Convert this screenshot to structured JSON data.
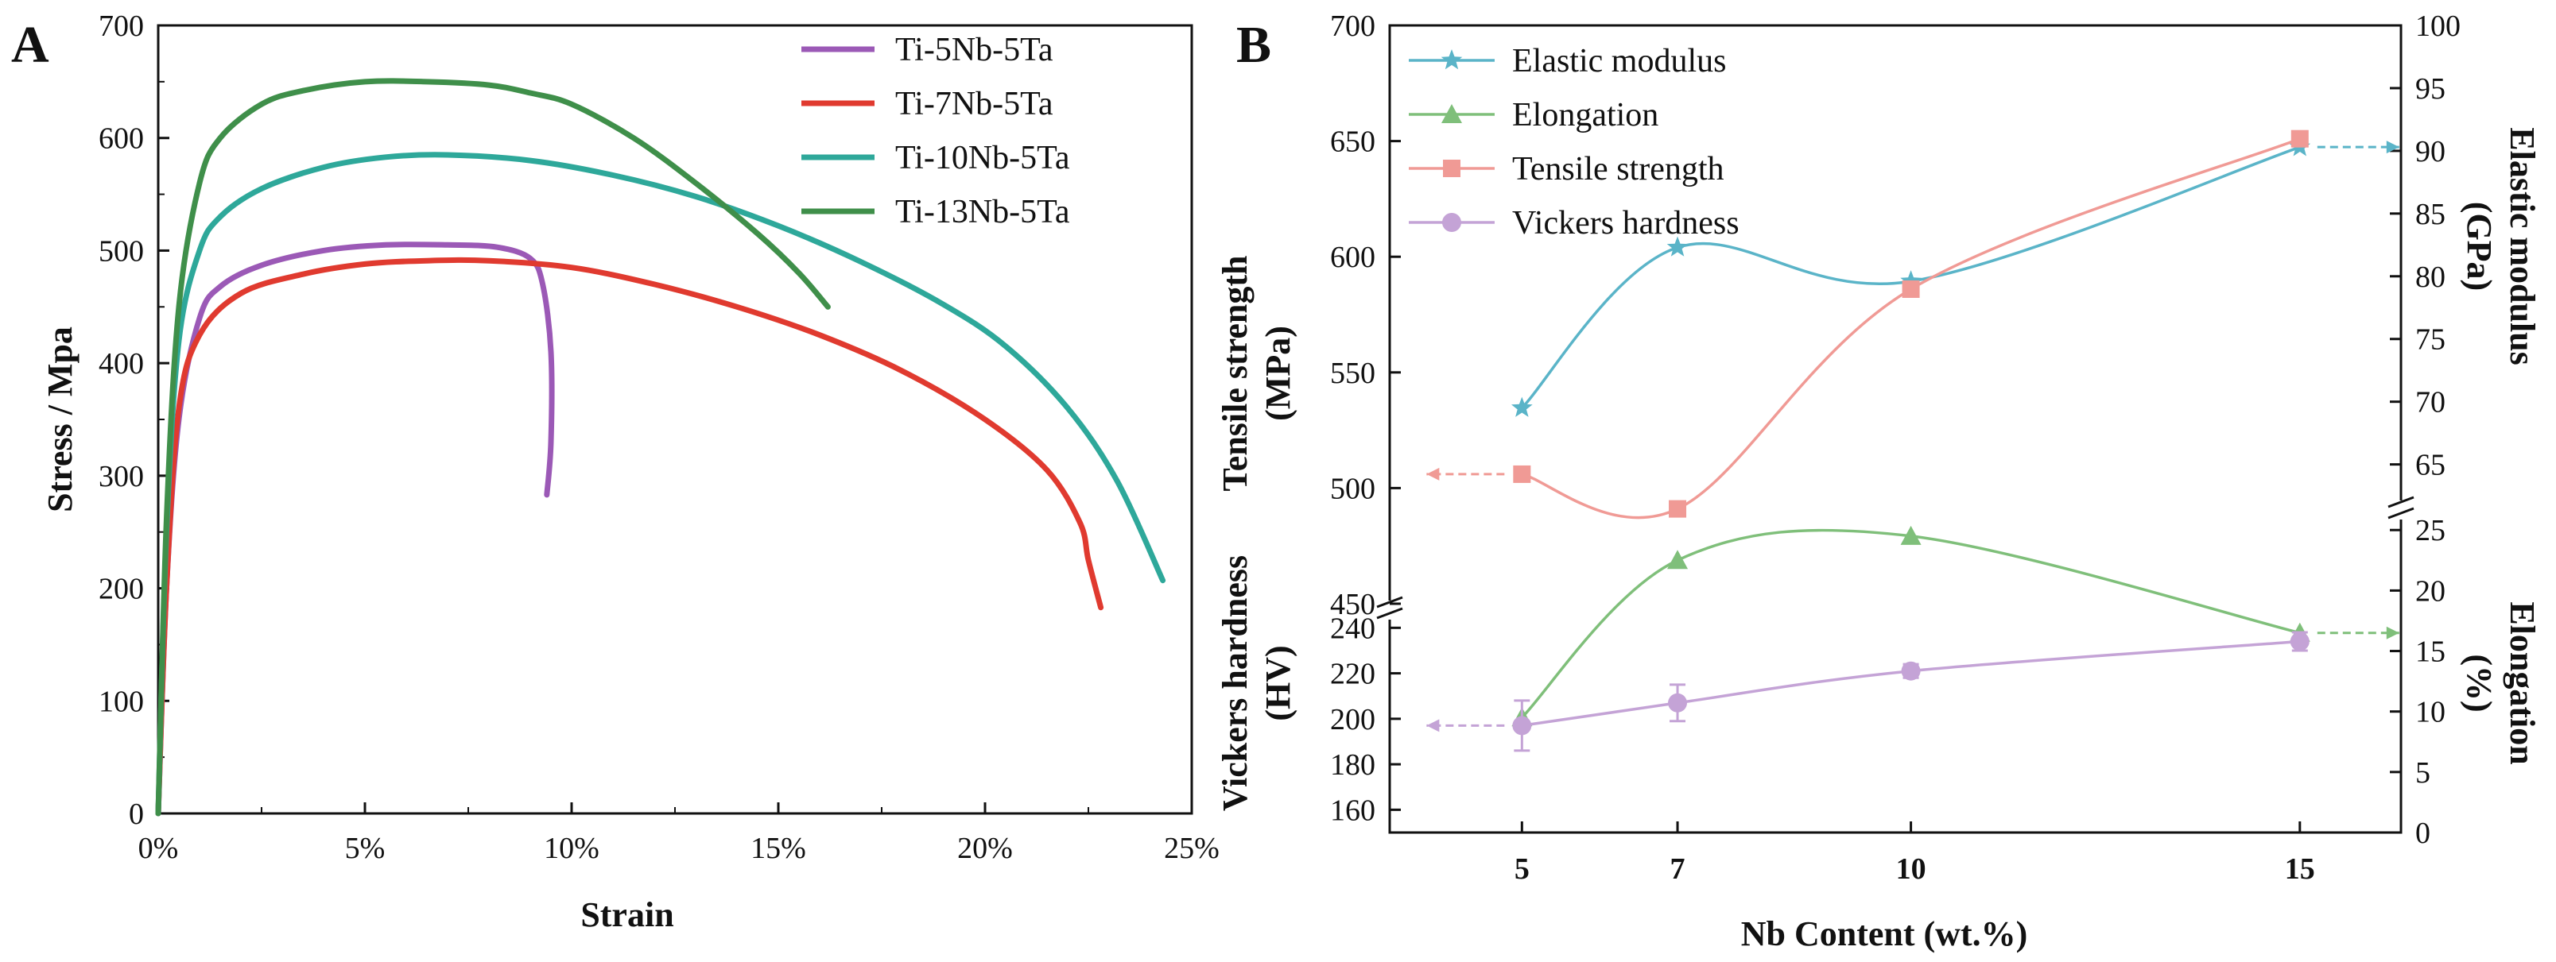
{
  "chart_data": [
    {
      "panel": "A",
      "type": "line",
      "xlabel": "Strain",
      "ylabel": "Stress / Mpa",
      "xlim": [
        0,
        25
      ],
      "ylim": [
        0,
        700
      ],
      "xticks": [
        "0%",
        "5%",
        "10%",
        "15%",
        "20%",
        "25%"
      ],
      "yticks": [
        "0",
        "100",
        "200",
        "300",
        "400",
        "500",
        "600",
        "700"
      ],
      "legend_position": "top-right",
      "series": [
        {
          "name": "Ti-5Nb-5Ta",
          "color": "#9b59b6",
          "x": [
            0,
            0.2,
            0.5,
            1.0,
            1.5,
            2.5,
            4.0,
            5.5,
            7.0,
            8.2,
            9.0,
            9.3,
            9.5,
            9.5,
            9.4
          ],
          "y": [
            0,
            200,
            350,
            440,
            468,
            487,
            500,
            505,
            505,
            503,
            493,
            470,
            410,
            330,
            283
          ]
        },
        {
          "name": "Ti-7Nb-5Ta",
          "color": "#e03a2f",
          "x": [
            0,
            0.2,
            0.5,
            1.0,
            2.0,
            3.5,
            5.0,
            6.5,
            8.0,
            10.0,
            12.0,
            14.0,
            16.0,
            18.0,
            20.0,
            21.5,
            22.3,
            22.5,
            22.8
          ],
          "y": [
            0,
            200,
            360,
            425,
            462,
            479,
            488,
            491,
            491,
            485,
            470,
            450,
            425,
            393,
            350,
            305,
            258,
            225,
            183
          ]
        },
        {
          "name": "Ti-10Nb-5Ta",
          "color": "#2ea89a",
          "x": [
            0,
            0.2,
            0.5,
            1.0,
            1.5,
            2.5,
            4.0,
            5.5,
            7.0,
            9.0,
            11.0,
            13.0,
            15.0,
            17.0,
            19.0,
            20.5,
            22.0,
            23.2,
            24.3
          ],
          "y": [
            0,
            250,
            420,
            500,
            530,
            555,
            574,
            583,
            585,
            580,
            567,
            548,
            522,
            490,
            452,
            415,
            360,
            295,
            207
          ]
        },
        {
          "name": "Ti-13Nb-5Ta",
          "color": "#3f8f4a",
          "x": [
            0,
            0.2,
            0.5,
            1.0,
            1.5,
            2.5,
            3.5,
            5.0,
            6.5,
            8.0,
            9.0,
            10.0,
            11.5,
            13.0,
            14.5,
            15.5,
            16.2
          ],
          "y": [
            0,
            260,
            450,
            560,
            600,
            630,
            642,
            650,
            650,
            647,
            640,
            630,
            600,
            560,
            515,
            480,
            450
          ]
        }
      ]
    },
    {
      "panel": "B",
      "type": "line",
      "xlabel": "Nb Content (wt.%)",
      "categories": [
        "5",
        "7",
        "10",
        "15"
      ],
      "x_positions": [
        5,
        7,
        10,
        15
      ],
      "xlim": [
        3.3,
        16.3
      ],
      "left_upper": {
        "label_lines": [
          "Tensile strength",
          "(MPa)"
        ],
        "ylim": [
          450,
          700
        ],
        "ticks": [
          "450",
          "500",
          "550",
          "600",
          "650",
          "700"
        ]
      },
      "left_lower": {
        "label_lines": [
          "Vickers hardness",
          "(HV)"
        ],
        "ylim": [
          150,
          245
        ],
        "ticks": [
          "160",
          "180",
          "200",
          "220",
          "240"
        ]
      },
      "right_upper": {
        "label_lines": [
          "Elastic modulus",
          "(GPa)"
        ],
        "ylim": [
          62,
          100
        ],
        "ticks": [
          "65",
          "70",
          "75",
          "80",
          "85",
          "90",
          "95",
          "100"
        ]
      },
      "right_lower": {
        "label_lines": [
          "Elongation",
          "(%)"
        ],
        "ylim": [
          0,
          26
        ],
        "ticks": [
          "0",
          "5",
          "10",
          "15",
          "20",
          "25"
        ]
      },
      "legend_position": "top-left",
      "series": [
        {
          "name": "Elastic modulus",
          "color": "#5ab4c8",
          "marker": "star",
          "axis": "right_upper",
          "values": [
            69.5,
            82.3,
            79.6,
            90.3
          ]
        },
        {
          "name": "Elongation",
          "color": "#7fbf7a",
          "marker": "triangle",
          "axis": "right_lower",
          "values": [
            9.5,
            22.5,
            24.5,
            16.5
          ]
        },
        {
          "name": "Tensile strength",
          "color": "#f09a95",
          "marker": "square",
          "axis": "left_upper",
          "values": [
            506,
            491,
            586,
            651
          ]
        },
        {
          "name": "Vickers hardness",
          "color": "#c4a3d6",
          "marker": "circle",
          "axis": "left_lower",
          "values": [
            197,
            207,
            221,
            234
          ],
          "errors": [
            11,
            8,
            3,
            4
          ]
        }
      ]
    }
  ]
}
